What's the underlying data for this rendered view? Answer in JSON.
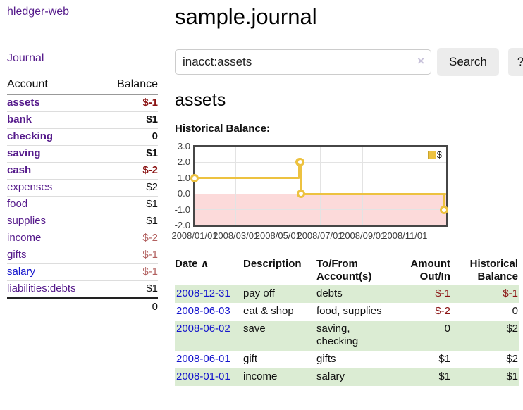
{
  "app": {
    "brand": "hledger-web"
  },
  "nav": {
    "journal": "Journal"
  },
  "sidebar": {
    "account_header": "Account",
    "balance_header": "Balance",
    "total": "0",
    "rows": [
      {
        "name": "assets",
        "balance": "$-1",
        "level": 1,
        "bold": true,
        "negative": true,
        "color": "purple"
      },
      {
        "name": "bank",
        "balance": "$1",
        "level": 2,
        "bold": true,
        "negative": false,
        "color": "purple"
      },
      {
        "name": "checking",
        "balance": "0",
        "level": 3,
        "bold": true,
        "negative": false,
        "color": "purple"
      },
      {
        "name": "saving",
        "balance": "$1",
        "level": 3,
        "bold": true,
        "negative": false,
        "color": "purple"
      },
      {
        "name": "cash",
        "balance": "$-2",
        "level": 2,
        "bold": true,
        "negative": true,
        "color": "purple"
      },
      {
        "name": "expenses",
        "balance": "$2",
        "level": 1,
        "bold": false,
        "negative": false,
        "color": "purple"
      },
      {
        "name": "food",
        "balance": "$1",
        "level": 2,
        "bold": false,
        "negative": false,
        "color": "purple"
      },
      {
        "name": "supplies",
        "balance": "$1",
        "level": 2,
        "bold": false,
        "negative": false,
        "color": "purple"
      },
      {
        "name": "income",
        "balance": "$-2",
        "level": 1,
        "bold": false,
        "negative": true,
        "color": "purple"
      },
      {
        "name": "gifts",
        "balance": "$-1",
        "level": 2,
        "bold": false,
        "negative": true,
        "color": "purple"
      },
      {
        "name": "salary",
        "balance": "$-1",
        "level": 2,
        "bold": false,
        "negative": true,
        "color": "blue"
      },
      {
        "name": "liabilities:debts",
        "balance": "$1",
        "level": 1,
        "bold": false,
        "negative": false,
        "color": "purple"
      }
    ]
  },
  "header": {
    "title": "sample.journal"
  },
  "search": {
    "value": "inacct:assets",
    "clear_icon": "×",
    "search_button": "Search",
    "help_button": "?"
  },
  "account_page": {
    "heading": "assets",
    "section_label": "Historical Balance:"
  },
  "chart_data": {
    "type": "line",
    "title": "Historical Balance",
    "step": true,
    "series": [
      {
        "name": "$",
        "color": "#edc240",
        "points": [
          {
            "x": "2008-01-01",
            "y": 1
          },
          {
            "x": "2008-06-01",
            "y": 2
          },
          {
            "x": "2008-06-02",
            "y": 2
          },
          {
            "x": "2008-06-03",
            "y": 0
          },
          {
            "x": "2008-12-31",
            "y": -1
          }
        ]
      }
    ],
    "x_ticks": [
      "2008/01/01",
      "2008/03/01",
      "2008/05/01",
      "2008/07/01",
      "2008/09/01",
      "2008/11/01"
    ],
    "y_ticks": [
      "3.0",
      "2.0",
      "1.0",
      "0.0",
      "-1.0",
      "-2.0"
    ],
    "xlim": [
      "2008-01-01",
      "2008-12-31"
    ],
    "ylim": [
      -2,
      3
    ],
    "grid": true,
    "negative_region_color": "#fcdada",
    "zero_line_color": "#8b0000",
    "legend": {
      "label": "$",
      "position": "top-right"
    }
  },
  "register": {
    "headers": {
      "date": "Date",
      "sort_indicator": "∧",
      "description": "Description",
      "accounts": "To/From Account(s)",
      "amount": "Amount Out/In",
      "balance": "Historical Balance"
    },
    "rows": [
      {
        "date": "2008-12-31",
        "description": "pay off",
        "accounts": "debts",
        "amount": "$-1",
        "amount_negative": true,
        "balance": "$-1",
        "balance_negative": true
      },
      {
        "date": "2008-06-03",
        "description": "eat & shop",
        "accounts": "food, supplies",
        "amount": "$-2",
        "amount_negative": true,
        "balance": "0",
        "balance_negative": false
      },
      {
        "date": "2008-06-02",
        "description": "save",
        "accounts": "saving, checking",
        "amount": "0",
        "amount_negative": false,
        "balance": "$2",
        "balance_negative": false
      },
      {
        "date": "2008-06-01",
        "description": "gift",
        "accounts": "gifts",
        "amount": "$1",
        "amount_negative": false,
        "balance": "$2",
        "balance_negative": false
      },
      {
        "date": "2008-01-01",
        "description": "income",
        "accounts": "salary",
        "amount": "$1",
        "amount_negative": false,
        "balance": "$1",
        "balance_negative": false
      }
    ]
  }
}
